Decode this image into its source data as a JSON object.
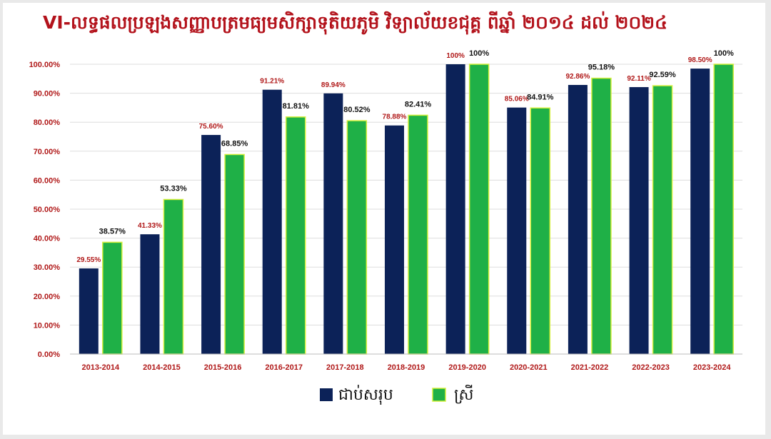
{
  "title": "VI-លទ្ធផលប្រឡងសញ្ញាបត្រមធ្យមសិក្សាទុតិយភូមិ វិទ្យាល័យខជុគ្គ ពីឆ្នាំ ២០១៤ ដល់ ២០២៤",
  "colors": {
    "total": "#0c2258",
    "female": "#1fb047",
    "female_border": "#d4ef3a",
    "text_red": "#b01818",
    "grid": "#dddddd"
  },
  "chart_data": {
    "type": "bar",
    "categories": [
      "2013-2014",
      "2014-2015",
      "2015-2016",
      "2016-2017",
      "2017-2018",
      "2018-2019",
      "2019-2020",
      "2020-2021",
      "2021-2022",
      "2022-2023",
      "2023-2024"
    ],
    "series": [
      {
        "name": "ជាប់សរុប",
        "values": [
          29.55,
          41.33,
          75.6,
          91.21,
          89.94,
          78.88,
          100,
          85.06,
          92.86,
          92.11,
          98.5
        ],
        "labels": [
          "29.55%",
          "41.33%",
          "75.60%",
          "91.21%",
          "89.94%",
          "78.88%",
          "100%",
          "85.06%",
          "92.86%",
          "92.11%",
          "98.50%"
        ]
      },
      {
        "name": "ស្រី",
        "values": [
          38.57,
          53.33,
          68.85,
          81.81,
          80.52,
          82.41,
          100,
          84.91,
          95.18,
          92.59,
          100
        ],
        "labels": [
          "38.57%",
          "53.33%",
          "68.85%",
          "81.81%",
          "80.52%",
          "82.41%",
          "100%",
          "84.91%",
          "95.18%",
          "92.59%",
          "100%"
        ]
      }
    ],
    "yticks": [
      "0.00%",
      "10.00%",
      "20.00%",
      "30.00%",
      "40.00%",
      "50.00%",
      "60.00%",
      "70.00%",
      "80.00%",
      "90.00%",
      "100.00%"
    ],
    "ylim": [
      0,
      100
    ],
    "grid": true,
    "legend_position": "bottom"
  }
}
